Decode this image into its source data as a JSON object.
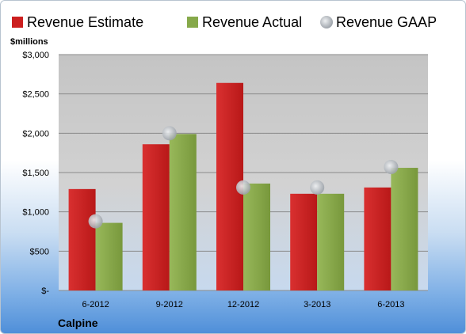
{
  "chart_data": {
    "type": "bar",
    "categories": [
      "6-2012",
      "9-2012",
      "12-2012",
      "3-2013",
      "6-2013"
    ],
    "series": [
      {
        "name": "Revenue Estimate",
        "kind": "bar",
        "color": "#cc1f1f",
        "values": [
          1290,
          1860,
          2640,
          1230,
          1310
        ]
      },
      {
        "name": "Revenue Actual",
        "kind": "bar",
        "color": "#86a94a",
        "values": [
          860,
          1990,
          1360,
          1230,
          1560
        ]
      },
      {
        "name": "Revenue GAAP",
        "kind": "marker",
        "color": "#c7ccd2",
        "values": [
          880,
          2000,
          1310,
          1310,
          1570
        ]
      }
    ],
    "ylabel": "$millions",
    "ylim": [
      0,
      3000
    ],
    "yticks": [
      0,
      500,
      1000,
      1500,
      2000,
      2500,
      3000
    ],
    "ytick_labels": [
      "$-",
      "$500",
      "$1,000",
      "$1,500",
      "$2,000",
      "$2,500",
      "$3,000"
    ],
    "grid": true,
    "legend": "top"
  },
  "company": "Calpine"
}
